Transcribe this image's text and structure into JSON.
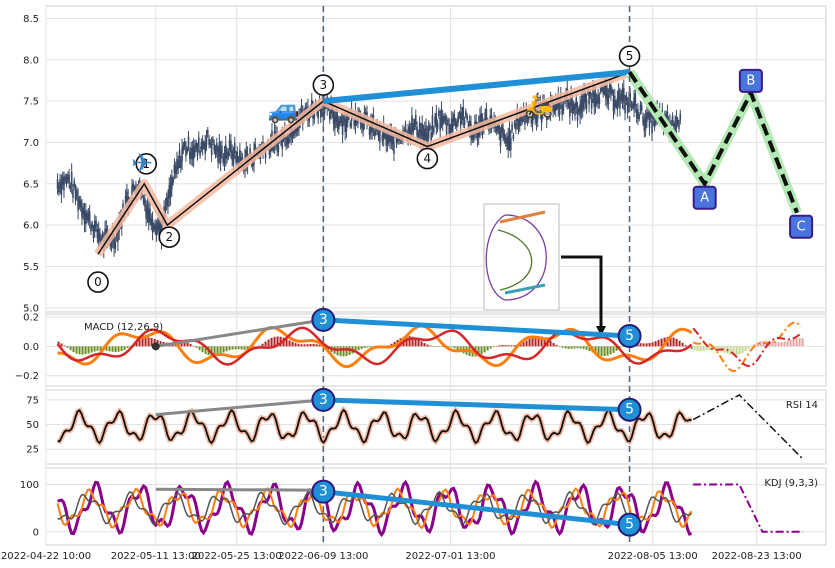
{
  "chart_data": {
    "type": "line",
    "title": "",
    "x_axis": {
      "type": "date",
      "range": [
        "2022-04-22",
        "2022-09-04"
      ],
      "tick_labels": [
        "2022-04-22 10:00",
        "2022-05-11 13:00",
        "2022-05-25 13:00",
        "2022-06-09 13:00",
        "2022-07-01 13:00",
        "2022-08-05 13:00",
        "2022-08-23 13:00"
      ]
    },
    "panels": [
      {
        "name": "price",
        "type": "candlestick",
        "ylim": [
          4.95,
          8.65
        ],
        "yticks": [
          "5.0",
          "5.5",
          "6.0",
          "6.5",
          "7.0",
          "7.5",
          "8.0",
          "8.5"
        ],
        "series": [
          {
            "values_x": [
              "2022-04-24",
              "2022-04-26",
              "2022-04-28",
              "2022-04-30",
              "2022-05-02",
              "2022-05-04",
              "2022-05-06",
              "2022-05-08",
              "2022-05-10",
              "2022-05-12",
              "2022-05-14",
              "2022-05-16",
              "2022-05-18",
              "2022-05-20",
              "2022-05-22",
              "2022-05-24",
              "2022-05-26",
              "2022-05-28",
              "2022-05-30",
              "2022-06-01",
              "2022-06-03",
              "2022-06-05",
              "2022-06-07",
              "2022-06-09",
              "2022-06-11",
              "2022-06-13",
              "2022-06-15",
              "2022-06-17",
              "2022-06-19",
              "2022-06-21",
              "2022-06-23",
              "2022-06-25",
              "2022-06-27",
              "2022-06-29",
              "2022-07-01",
              "2022-07-03",
              "2022-07-05",
              "2022-07-07",
              "2022-07-09",
              "2022-07-11",
              "2022-07-13",
              "2022-07-15",
              "2022-07-17",
              "2022-07-19",
              "2022-07-21",
              "2022-07-23",
              "2022-07-25",
              "2022-07-27",
              "2022-07-29",
              "2022-07-31",
              "2022-08-02",
              "2022-08-04",
              "2022-08-06",
              "2022-08-08",
              "2022-08-10"
            ],
            "values_y": [
              6.5,
              6.55,
              6.25,
              6.0,
              5.8,
              5.85,
              6.3,
              6.5,
              6.1,
              5.95,
              6.55,
              6.95,
              6.9,
              7.05,
              6.85,
              6.9,
              6.75,
              6.85,
              6.95,
              7.0,
              7.1,
              7.3,
              7.4,
              7.45,
              7.3,
              7.25,
              7.35,
              7.2,
              7.1,
              7.0,
              7.15,
              7.2,
              7.05,
              7.3,
              7.2,
              7.35,
              7.1,
              7.3,
              7.15,
              7.0,
              7.3,
              7.35,
              7.4,
              7.45,
              7.5,
              7.4,
              7.55,
              7.6,
              7.55,
              7.5,
              7.45,
              7.25,
              7.3,
              7.2,
              7.25
            ]
          }
        ],
        "elliott_impulse": [
          {
            "label": "0",
            "x": "2022-05-01",
            "y": 5.65
          },
          {
            "label": "1",
            "x": "2022-05-09",
            "y": 6.5
          },
          {
            "label": "2",
            "x": "2022-05-13",
            "y": 6.0
          },
          {
            "label": "3",
            "x": "2022-06-09",
            "y": 7.5
          },
          {
            "label": "4",
            "x": "2022-06-27",
            "y": 6.95
          },
          {
            "label": "5",
            "x": "2022-08-01",
            "y": 7.85
          }
        ],
        "elliott_correction": [
          {
            "label": "A",
            "x": "2022-08-14",
            "y": 6.5
          },
          {
            "label": "B",
            "x": "2022-08-22",
            "y": 7.6
          },
          {
            "label": "C",
            "x": "2022-08-30",
            "y": 6.15
          }
        ],
        "trend_line": {
          "from": {
            "x": "2022-06-09",
            "y": 7.5
          },
          "to": {
            "x": "2022-08-01",
            "y": 7.85
          }
        },
        "vlines": [
          "2022-06-09",
          "2022-08-01"
        ]
      },
      {
        "name": "macd",
        "label": "MACD (12,26,9)",
        "ylim": [
          -0.27,
          0.22
        ],
        "yticks": [
          "0.2",
          "0.0",
          "−0.2"
        ],
        "divergence": [
          {
            "label": "3",
            "x": "2022-06-09",
            "y": 0.18
          },
          {
            "label": "5",
            "x": "2022-08-01",
            "y": 0.07
          }
        ]
      },
      {
        "name": "rsi",
        "label": "RSI 14",
        "ylim": [
          10,
          85
        ],
        "yticks": [
          "25",
          "50",
          "75"
        ],
        "divergence": [
          {
            "label": "3",
            "x": "2022-06-09",
            "y": 75
          },
          {
            "label": "5",
            "x": "2022-08-01",
            "y": 65
          }
        ]
      },
      {
        "name": "kdj",
        "label": "KDJ (9,3,3)",
        "ylim": [
          -28,
          135
        ],
        "yticks": [
          "0",
          "100"
        ],
        "divergence": [
          {
            "label": "3",
            "x": "2022-06-09",
            "y": 85
          },
          {
            "label": "5",
            "x": "2022-08-01",
            "y": 15
          }
        ]
      }
    ]
  },
  "colors": {
    "candle": "#3a4a66",
    "impulse_band": "#f5b8a0",
    "impulse_line": "#111111",
    "trend_blue": "#1f8fd6",
    "correction_green": "#b4e8b4",
    "wave_box_fill": "#4a74dd",
    "wave_box_border": "#3a1a8a",
    "macd_line": "#ff7f0e",
    "signal_line": "#d62728",
    "hist_pos": "#b22222",
    "hist_neg": "#6b8e23",
    "rsi_line": "#111111",
    "rsi_glow": "#f5b8a0",
    "kdj_k": "#ff7f0e",
    "kdj_d": "#555555",
    "kdj_j": "#8b008b",
    "gray_line": "#888888",
    "vline": "#56677a"
  },
  "icons": [
    "airplane-icon",
    "car-icon",
    "scooter-icon"
  ]
}
